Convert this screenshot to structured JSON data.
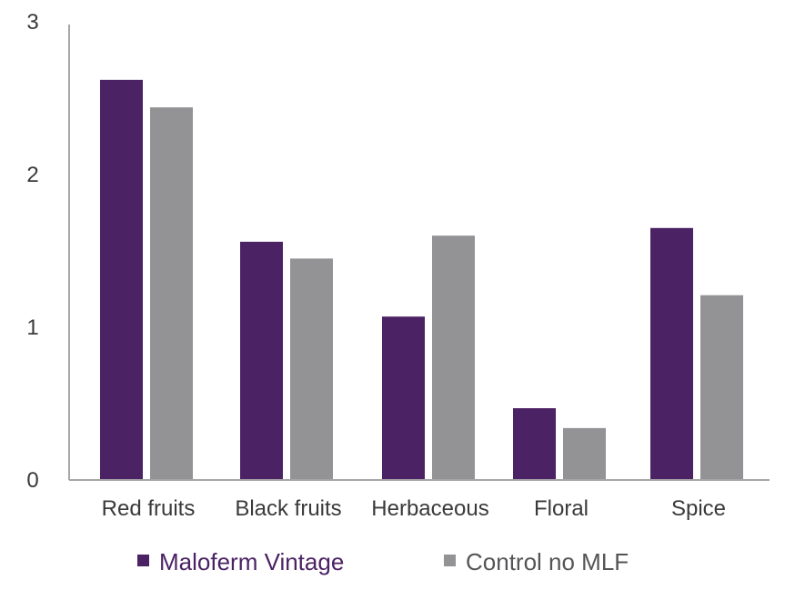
{
  "chart_data": {
    "type": "bar",
    "categories": [
      "Red fruits",
      "Black fruits",
      "Herbaceous",
      "Floral",
      "Spice"
    ],
    "series": [
      {
        "name": "Maloferm Vintage",
        "color": "#4b2264",
        "values": [
          2.62,
          1.56,
          1.07,
          0.47,
          1.65
        ]
      },
      {
        "name": "Control no MLF",
        "color": "#939396",
        "values": [
          2.44,
          1.45,
          1.6,
          0.34,
          1.21
        ]
      }
    ],
    "ylim": [
      0,
      3
    ],
    "yticks": [
      "0",
      "1",
      "2",
      "3"
    ],
    "legend_position": "bottom",
    "grid": false
  }
}
